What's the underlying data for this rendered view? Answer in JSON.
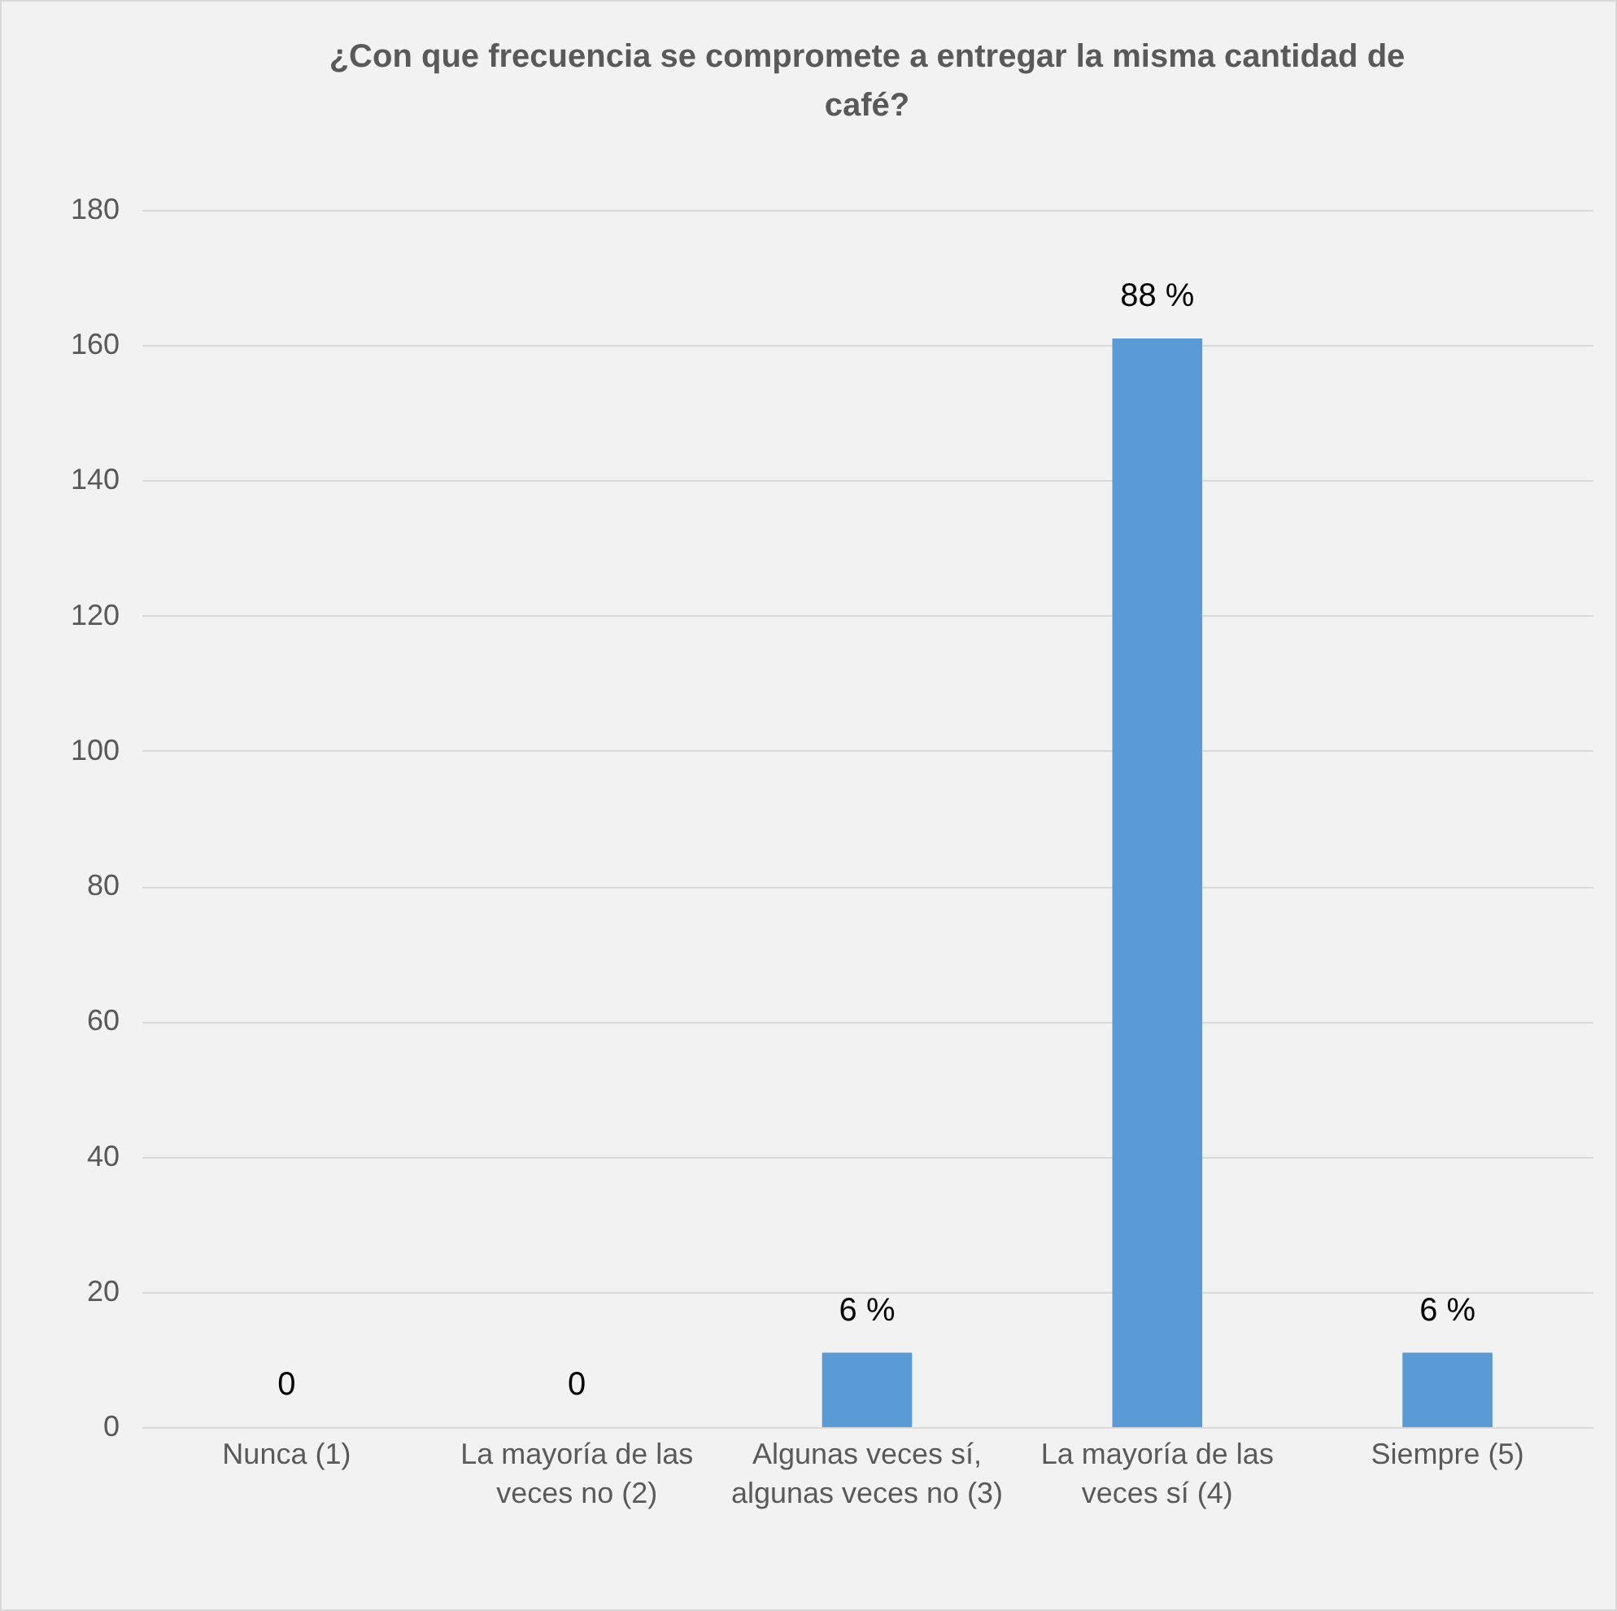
{
  "chart_data": {
    "type": "bar",
    "title": "¿Con que frecuencia se compromete a entregar la misma cantidad de café?",
    "categories": [
      "Nunca (1)",
      "La mayoría de las veces no (2)",
      "Algunas veces sí, algunas veces no (3)",
      "La mayoría de las veces sí (4)",
      "Siempre (5)"
    ],
    "values": [
      0,
      0,
      11,
      161,
      11
    ],
    "annotations": [
      {
        "text": "0",
        "x": "Nunca (1)",
        "y": 0
      },
      {
        "text": "0",
        "x": "La mayoría de las veces no (2)",
        "y": 0
      },
      {
        "text": "6 %",
        "x": "Algunas veces sí, algunas veces no (3)",
        "y": 11
      },
      {
        "text": "88 %",
        "x": "La mayoría de las veces sí (4)",
        "y": 161
      },
      {
        "text": "6 %",
        "x": "Siempre (5)",
        "y": 11
      }
    ],
    "color": "#5b9bd5",
    "ylim": [
      0,
      180
    ],
    "yticks": [
      0,
      20,
      40,
      60,
      80,
      100,
      120,
      140,
      160,
      180
    ],
    "grid": "y"
  }
}
